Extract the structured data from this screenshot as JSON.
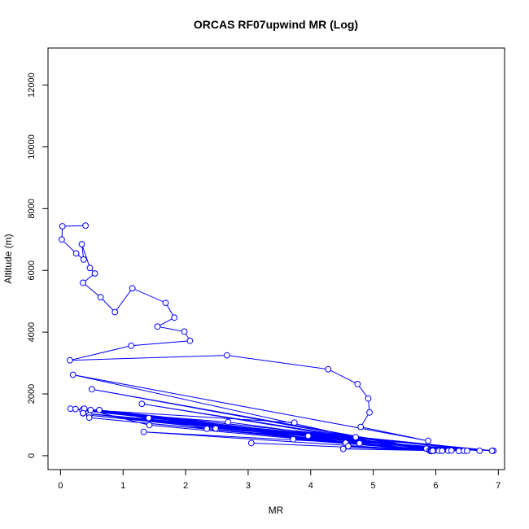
{
  "chart_data": {
    "type": "line",
    "title": "ORCAS RF07upwind MR (Log)",
    "xlabel": "MR",
    "ylabel": "Altitude (m)",
    "xlim": [
      -0.2,
      7.1
    ],
    "ylim": [
      -450,
      13200
    ],
    "xticks": [
      "0",
      "1",
      "2",
      "3",
      "4",
      "5",
      "6",
      "7"
    ],
    "yticks": [
      "0",
      "2000",
      "4000",
      "6000",
      "8000",
      "10000",
      "12000"
    ],
    "grid": false,
    "series": [
      {
        "color": "#0000ff",
        "marker": "open-circle",
        "x": [
          0.4,
          0.03,
          0.02,
          0.25,
          0.37,
          0.34,
          0.47,
          0.55,
          0.36,
          0.64,
          0.87,
          1.15,
          1.68,
          1.82,
          1.55,
          1.98,
          2.07,
          1.13,
          0.15,
          2.66,
          4.28,
          4.75,
          4.92,
          4.94,
          4.8,
          5.88,
          0.2,
          4.72,
          0.5,
          5.85,
          1.3,
          5.9,
          0.16,
          3.74,
          0.24,
          5.92,
          0.36,
          0.38,
          6.37,
          0.35,
          2.68,
          6.1,
          0.48,
          6.92,
          1.41,
          6.45,
          0.46,
          2.48,
          6.7,
          0.62,
          2.34,
          6.5,
          0.36,
          3.96,
          6.2,
          0.38,
          1.42,
          5.92,
          0.46,
          4.78,
          6.9,
          0.36,
          5.93,
          1.33,
          4.56,
          5.95,
          3.05,
          5.97,
          3.72,
          6.05,
          4.52,
          6.25,
          4.6,
          6.1,
          5.95
        ]
      }
    ]
  }
}
